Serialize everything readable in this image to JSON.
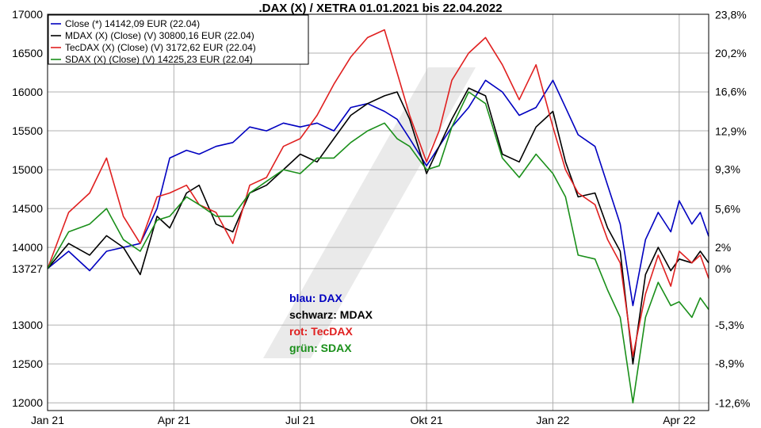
{
  "chart_data": {
    "type": "line",
    "title": ".DAX (X) / XETRA 01.01.2021 bis 22.04.2022",
    "xlabel": "",
    "ylabel": "",
    "x_tick_labels": [
      "Jan 21",
      "Apr 21",
      "Jul 21",
      "Okt 21",
      "Jan 22",
      "Apr 22"
    ],
    "x_tick_months": [
      0,
      3,
      6,
      9,
      12,
      15
    ],
    "x_range_months": [
      0,
      15.7
    ],
    "ylim": [
      11900,
      17000
    ],
    "y_ticks_left": [
      12000,
      12500,
      13000,
      13727,
      14000,
      14500,
      15000,
      15500,
      16000,
      16500,
      17000
    ],
    "y_ticks_right": [
      {
        "label": "23,8%",
        "value": 23.8
      },
      {
        "label": "20,2%",
        "value": 20.2
      },
      {
        "label": "16,6%",
        "value": 16.6
      },
      {
        "label": "12,9%",
        "value": 12.9
      },
      {
        "label": "9,3%",
        "value": 9.3
      },
      {
        "label": "5,6%",
        "value": 5.6
      },
      {
        "label": "2%",
        "value": 2.0
      },
      {
        "label": "0%",
        "value": 0.0
      },
      {
        "label": "-5,3%",
        "value": -5.3
      },
      {
        "label": "-8,9%",
        "value": -8.9
      },
      {
        "label": "-12,6%",
        "value": -12.6
      }
    ],
    "grid": true,
    "legend_position": "top-left",
    "legend": [
      "Close (*) 14142,09 EUR (22.04)",
      "MDAX (X) (Close) (V) 30800,16 EUR (22.04)",
      "TecDAX (X) (Close) (V) 3172,62 EUR (22.04)",
      "SDAX (X) (Close) (V) 14225,23 EUR (22.04)"
    ],
    "series": [
      {
        "color": "#0000c0",
        "x": [
          0,
          0.5,
          1,
          1.4,
          1.8,
          2.2,
          2.6,
          2.9,
          3.3,
          3.6,
          4,
          4.4,
          4.8,
          5.2,
          5.6,
          6,
          6.4,
          6.8,
          7.2,
          7.6,
          8,
          8.3,
          8.6,
          9,
          9.3,
          9.6,
          10,
          10.4,
          10.8,
          11.2,
          11.6,
          12,
          12.3,
          12.6,
          13,
          13.3,
          13.6,
          13.9,
          14.2,
          14.5,
          14.8,
          15,
          15.3,
          15.5,
          15.7
        ],
        "y": [
          13727,
          13950,
          13700,
          13950,
          14000,
          14050,
          14500,
          15150,
          15250,
          15200,
          15300,
          15350,
          15550,
          15500,
          15600,
          15550,
          15600,
          15500,
          15800,
          15850,
          15750,
          15650,
          15400,
          15050,
          15300,
          15550,
          15800,
          16150,
          16000,
          15700,
          15800,
          16150,
          15800,
          15450,
          15300,
          14800,
          14300,
          13250,
          14100,
          14450,
          14200,
          14600,
          14300,
          14450,
          14142
        ]
      },
      {
        "color": "#000000",
        "x": [
          0,
          0.5,
          1,
          1.4,
          1.8,
          2.2,
          2.6,
          2.9,
          3.3,
          3.6,
          4,
          4.4,
          4.8,
          5.2,
          5.6,
          6,
          6.4,
          6.8,
          7.2,
          7.6,
          8,
          8.3,
          8.6,
          9,
          9.3,
          9.6,
          10,
          10.4,
          10.8,
          11.2,
          11.6,
          12,
          12.3,
          12.6,
          13,
          13.3,
          13.6,
          13.9,
          14.2,
          14.5,
          14.8,
          15,
          15.3,
          15.5,
          15.7
        ],
        "y": [
          13727,
          14050,
          13900,
          14150,
          14000,
          13650,
          14400,
          14250,
          14700,
          14800,
          14300,
          14200,
          14700,
          14800,
          15000,
          15200,
          15100,
          15400,
          15700,
          15850,
          15950,
          16000,
          15650,
          14950,
          15300,
          15650,
          16050,
          15950,
          15200,
          15100,
          15550,
          15750,
          15100,
          14650,
          14700,
          14250,
          13950,
          12500,
          13650,
          14000,
          13700,
          13850,
          13800,
          13950,
          13800
        ]
      },
      {
        "color": "#e02020",
        "x": [
          0,
          0.5,
          1,
          1.4,
          1.8,
          2.2,
          2.6,
          2.9,
          3.3,
          3.6,
          4,
          4.4,
          4.8,
          5.2,
          5.6,
          6,
          6.4,
          6.8,
          7.2,
          7.6,
          8,
          8.3,
          8.6,
          9,
          9.3,
          9.6,
          10,
          10.4,
          10.8,
          11.2,
          11.6,
          12,
          12.3,
          12.6,
          13,
          13.3,
          13.6,
          13.9,
          14.2,
          14.5,
          14.8,
          15,
          15.3,
          15.5,
          15.7
        ],
        "y": [
          13727,
          14450,
          14700,
          15150,
          14400,
          14050,
          14650,
          14700,
          14800,
          14550,
          14450,
          14050,
          14800,
          14900,
          15300,
          15400,
          15700,
          16100,
          16450,
          16700,
          16800,
          16250,
          15700,
          15100,
          15500,
          16150,
          16500,
          16700,
          16350,
          15900,
          16350,
          15550,
          15000,
          14700,
          14550,
          14100,
          13800,
          12600,
          13400,
          13900,
          13500,
          13950,
          13800,
          13900,
          13600
        ]
      },
      {
        "color": "#1a8f1a",
        "x": [
          0,
          0.5,
          1,
          1.4,
          1.8,
          2.2,
          2.6,
          2.9,
          3.3,
          3.6,
          4,
          4.4,
          4.8,
          5.2,
          5.6,
          6,
          6.4,
          6.8,
          7.2,
          7.6,
          8,
          8.3,
          8.6,
          9,
          9.3,
          9.6,
          10,
          10.4,
          10.8,
          11.2,
          11.6,
          12,
          12.3,
          12.6,
          13,
          13.3,
          13.6,
          13.9,
          14.2,
          14.5,
          14.8,
          15,
          15.3,
          15.5,
          15.7
        ],
        "y": [
          13727,
          14200,
          14300,
          14500,
          14100,
          13950,
          14350,
          14400,
          14650,
          14550,
          14400,
          14400,
          14700,
          14850,
          15000,
          14950,
          15150,
          15150,
          15350,
          15500,
          15600,
          15400,
          15300,
          15000,
          15050,
          15550,
          16000,
          15850,
          15150,
          14900,
          15200,
          14950,
          14650,
          13900,
          13850,
          13450,
          13100,
          12000,
          13100,
          13550,
          13250,
          13300,
          13100,
          13350,
          13200
        ]
      }
    ],
    "annotations": [
      {
        "text": "blau: DAX",
        "color": "#0000c0"
      },
      {
        "text": "schwarz: MDAX",
        "color": "#000000"
      },
      {
        "text": "rot: TecDAX",
        "color": "#e02020"
      },
      {
        "text": "grün: SDAX",
        "color": "#1a8f1a"
      }
    ]
  }
}
